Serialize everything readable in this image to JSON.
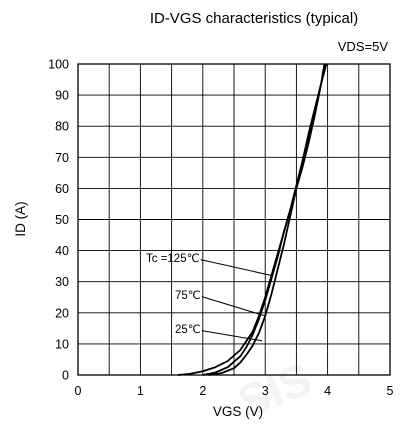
{
  "chart_data": {
    "type": "line",
    "title": "ID-VGS characteristics (typical)",
    "condition": "VDS=5V",
    "xlabel": "VGS (V)",
    "ylabel": "ID (A)",
    "xlim": [
      0,
      5
    ],
    "ylim": [
      0,
      100
    ],
    "xticks": [
      "0",
      "1",
      "2",
      "3",
      "4",
      "5"
    ],
    "yticks": [
      "0",
      "10",
      "20",
      "30",
      "40",
      "50",
      "60",
      "70",
      "80",
      "90",
      "100"
    ],
    "grid": true,
    "series": [
      {
        "name": "Tc =125℃",
        "x": [
          1.6,
          1.8,
          2.0,
          2.2,
          2.4,
          2.6,
          2.8,
          2.9,
          3.0,
          3.1,
          3.2,
          3.3,
          3.4,
          3.5,
          3.6,
          3.7,
          3.8,
          3.9,
          3.95
        ],
        "y": [
          0,
          0.4,
          1.2,
          2.5,
          4.5,
          8,
          14,
          19,
          25,
          32,
          39,
          46,
          53,
          60,
          67,
          75,
          84,
          94,
          100
        ]
      },
      {
        "name": "75℃",
        "x": [
          2.0,
          2.2,
          2.4,
          2.6,
          2.7,
          2.8,
          2.9,
          3.0,
          3.1,
          3.2,
          3.3,
          3.4,
          3.5,
          3.6,
          3.7,
          3.8,
          3.9,
          3.95
        ],
        "y": [
          0,
          0.8,
          2.5,
          6,
          9,
          13,
          18,
          24,
          31,
          38,
          46,
          53,
          61,
          69,
          77,
          85,
          94,
          100
        ]
      },
      {
        "name": "25℃",
        "x": [
          2.1,
          2.3,
          2.5,
          2.6,
          2.7,
          2.8,
          2.9,
          3.0,
          3.1,
          3.2,
          3.3,
          3.4,
          3.5,
          3.6,
          3.7,
          3.8,
          3.9,
          3.98
        ],
        "y": [
          0,
          0.6,
          2.2,
          4,
          6.5,
          9.5,
          13.5,
          19,
          26,
          34,
          42,
          51,
          60,
          69,
          78,
          86,
          94,
          100
        ]
      }
    ],
    "watermark": "SIS"
  }
}
